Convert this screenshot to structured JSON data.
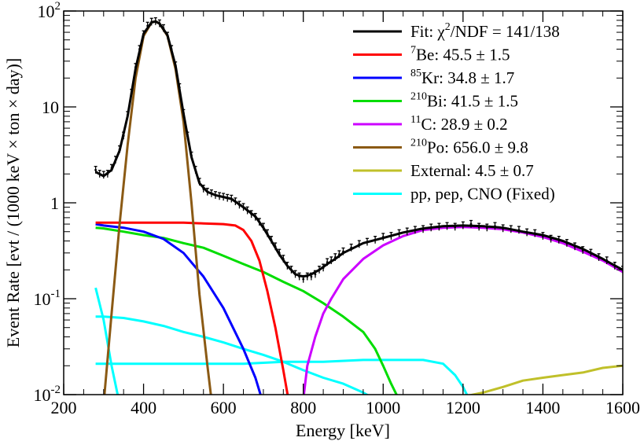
{
  "chart_data": {
    "type": "line",
    "title": "",
    "xlabel": "Energy [keV]",
    "ylabel": "Event Rate [evt / (1000 keV × ton × day)]",
    "xlim": [
      200,
      1600
    ],
    "ylim": [
      0.01,
      100
    ],
    "yscale": "log",
    "x_ticks": [
      {
        "value": 200,
        "label": "200"
      },
      {
        "value": 400,
        "label": "400"
      },
      {
        "value": 600,
        "label": "600"
      },
      {
        "value": 800,
        "label": "800"
      },
      {
        "value": 1000,
        "label": "1000"
      },
      {
        "value": 1200,
        "label": "1200"
      },
      {
        "value": 1400,
        "label": "1400"
      },
      {
        "value": 1600,
        "label": "1600"
      }
    ],
    "y_ticks": [
      {
        "value": 0.01,
        "base": "10",
        "exp": "-2"
      },
      {
        "value": 0.1,
        "base": "10",
        "exp": "-1"
      },
      {
        "value": 1,
        "base": "1",
        "exp": ""
      },
      {
        "value": 10,
        "base": "10",
        "exp": ""
      },
      {
        "value": 100,
        "base": "10",
        "exp": "2"
      }
    ],
    "legend_position": "top-right",
    "legend": [
      {
        "id": "fit",
        "sup": "",
        "text": "Fit: χ",
        "sup2": "2",
        "text2": "/NDF = 141/138",
        "color": "#000000"
      },
      {
        "id": "be7",
        "sup": "7",
        "text": "Be: 45.5 ± 1.5",
        "color": "#ff0000"
      },
      {
        "id": "kr85",
        "sup": "85",
        "text": "Kr: 34.8 ± 1.7",
        "color": "#0000ff"
      },
      {
        "id": "bi210",
        "sup": "210",
        "text": "Bi: 41.5 ± 1.5",
        "color": "#00dd00"
      },
      {
        "id": "c11",
        "sup": "11",
        "text": "C: 28.9 ± 0.2",
        "color": "#cc00ff"
      },
      {
        "id": "po210",
        "sup": "210",
        "text": "Po: 656.0 ± 9.8",
        "color": "#8b5a14"
      },
      {
        "id": "external",
        "sup": "",
        "text": "External: 4.5 ± 0.7",
        "color": "#c0c02a"
      },
      {
        "id": "ppcno",
        "sup": "",
        "text": "pp, pep, CNO (Fixed)",
        "color": "#00ffff"
      }
    ],
    "series": [
      {
        "id": "ppcno_a",
        "color": "#00ffff",
        "x": [
          280,
          300,
          320,
          340
        ],
        "y": [
          0.13,
          0.06,
          0.02,
          0.008
        ]
      },
      {
        "id": "ppcno_b",
        "color": "#00ffff",
        "x": [
          280,
          300,
          350,
          400,
          450,
          500,
          550,
          600,
          650,
          700,
          750,
          800,
          850,
          900,
          950,
          1000
        ],
        "y": [
          0.065,
          0.065,
          0.063,
          0.058,
          0.052,
          0.045,
          0.04,
          0.035,
          0.03,
          0.026,
          0.022,
          0.018,
          0.015,
          0.013,
          0.0105,
          0.008
        ]
      },
      {
        "id": "ppcno_c",
        "color": "#00ffff",
        "x": [
          280,
          350,
          450,
          550,
          650,
          750,
          850,
          950,
          1050,
          1100,
          1150,
          1180,
          1200,
          1215,
          1230
        ],
        "y": [
          0.021,
          0.021,
          0.021,
          0.021,
          0.021,
          0.022,
          0.022,
          0.023,
          0.023,
          0.023,
          0.021,
          0.016,
          0.012,
          0.009,
          0.006
        ]
      },
      {
        "id": "external",
        "color": "#c0c02a",
        "x": [
          1150,
          1200,
          1250,
          1300,
          1350,
          1400,
          1450,
          1500,
          1550,
          1600
        ],
        "y": [
          0.009,
          0.0095,
          0.0105,
          0.012,
          0.014,
          0.015,
          0.016,
          0.017,
          0.019,
          0.02
        ]
      },
      {
        "id": "bi210",
        "color": "#00dd00",
        "x": [
          280,
          300,
          350,
          400,
          450,
          500,
          550,
          600,
          650,
          700,
          750,
          800,
          850,
          900,
          950,
          980,
          1000,
          1020,
          1045
        ],
        "y": [
          0.55,
          0.54,
          0.5,
          0.46,
          0.43,
          0.38,
          0.34,
          0.28,
          0.23,
          0.19,
          0.15,
          0.12,
          0.09,
          0.065,
          0.045,
          0.03,
          0.02,
          0.013,
          0.008
        ]
      },
      {
        "id": "kr85",
        "color": "#0000ff",
        "x": [
          280,
          300,
          350,
          400,
          450,
          500,
          550,
          600,
          650,
          680,
          700
        ],
        "y": [
          0.6,
          0.58,
          0.55,
          0.5,
          0.42,
          0.3,
          0.17,
          0.08,
          0.03,
          0.015,
          0.008
        ]
      },
      {
        "id": "be7",
        "color": "#ff0000",
        "x": [
          280,
          300,
          350,
          400,
          450,
          500,
          550,
          600,
          630,
          650,
          670,
          690,
          710,
          730,
          750,
          770
        ],
        "y": [
          0.62,
          0.62,
          0.62,
          0.62,
          0.62,
          0.62,
          0.61,
          0.6,
          0.58,
          0.52,
          0.4,
          0.25,
          0.12,
          0.05,
          0.018,
          0.006
        ]
      },
      {
        "id": "c11",
        "color": "#cc00ff",
        "x": [
          795,
          810,
          830,
          850,
          870,
          900,
          950,
          1000,
          1050,
          1100,
          1150,
          1200,
          1250,
          1300,
          1350,
          1400,
          1450,
          1500,
          1550,
          1600
        ],
        "y": [
          0.006,
          0.02,
          0.04,
          0.07,
          0.1,
          0.16,
          0.26,
          0.36,
          0.45,
          0.52,
          0.55,
          0.56,
          0.55,
          0.53,
          0.49,
          0.44,
          0.38,
          0.31,
          0.25,
          0.19
        ]
      },
      {
        "id": "po210",
        "color": "#8b5a14",
        "x": [
          300,
          320,
          340,
          360,
          380,
          400,
          420,
          430,
          440,
          460,
          480,
          500,
          520,
          540,
          560,
          575
        ],
        "y": [
          0.008,
          0.07,
          0.6,
          4.0,
          20.0,
          55.0,
          76.0,
          78.0,
          74.0,
          55.0,
          25.0,
          7.0,
          1.0,
          0.11,
          0.02,
          0.006
        ]
      },
      {
        "id": "fit",
        "color": "#000000",
        "x": [
          280,
          300,
          320,
          340,
          360,
          380,
          400,
          420,
          430,
          440,
          460,
          480,
          500,
          520,
          540,
          560,
          580,
          600,
          620,
          650,
          680,
          700,
          720,
          740,
          760,
          780,
          800,
          820,
          840,
          860,
          880,
          900,
          950,
          1000,
          1050,
          1100,
          1150,
          1200,
          1250,
          1300,
          1350,
          1400,
          1450,
          1500,
          1550,
          1600
        ],
        "y": [
          2.1,
          1.9,
          2.2,
          3.5,
          8.0,
          25.0,
          58.0,
          76.0,
          78.0,
          74.0,
          56.0,
          27.0,
          8.5,
          3.0,
          1.6,
          1.3,
          1.2,
          1.15,
          1.1,
          0.9,
          0.72,
          0.55,
          0.4,
          0.29,
          0.22,
          0.18,
          0.17,
          0.18,
          0.2,
          0.23,
          0.26,
          0.3,
          0.38,
          0.43,
          0.49,
          0.54,
          0.57,
          0.58,
          0.57,
          0.55,
          0.5,
          0.46,
          0.4,
          0.33,
          0.26,
          0.2
        ]
      }
    ],
    "data_points": {
      "id": "data",
      "color": "#000000",
      "x": [
        280,
        290,
        300,
        310,
        320,
        330,
        340,
        350,
        360,
        370,
        380,
        390,
        400,
        410,
        420,
        430,
        440,
        450,
        460,
        470,
        480,
        490,
        500,
        510,
        520,
        530,
        540,
        550,
        560,
        570,
        580,
        590,
        600,
        610,
        620,
        630,
        640,
        650,
        660,
        670,
        680,
        690,
        700,
        710,
        720,
        730,
        740,
        750,
        760,
        770,
        780,
        790,
        800,
        810,
        820,
        830,
        840,
        850,
        860,
        870,
        880,
        890,
        900,
        920,
        940,
        960,
        980,
        1000,
        1020,
        1040,
        1060,
        1080,
        1100,
        1120,
        1140,
        1160,
        1180,
        1200,
        1220,
        1240,
        1260,
        1280,
        1300,
        1320,
        1340,
        1360,
        1380,
        1400,
        1420,
        1440,
        1460,
        1480,
        1500,
        1520,
        1540,
        1560,
        1580,
        1600
      ],
      "y": [
        2.2,
        2.0,
        1.95,
        2.0,
        2.3,
        2.8,
        3.6,
        5.0,
        8.2,
        14.0,
        26.0,
        40.0,
        57.0,
        70.0,
        77.0,
        78.0,
        74.0,
        66.0,
        55.0,
        40.0,
        27.0,
        16.0,
        8.6,
        5.0,
        3.1,
        2.2,
        1.65,
        1.4,
        1.3,
        1.25,
        1.2,
        1.17,
        1.15,
        1.12,
        1.1,
        1.03,
        0.95,
        0.9,
        0.83,
        0.76,
        0.71,
        0.63,
        0.56,
        0.48,
        0.41,
        0.35,
        0.3,
        0.26,
        0.22,
        0.2,
        0.18,
        0.17,
        0.16,
        0.17,
        0.17,
        0.18,
        0.2,
        0.21,
        0.24,
        0.25,
        0.27,
        0.29,
        0.31,
        0.34,
        0.37,
        0.39,
        0.41,
        0.44,
        0.45,
        0.48,
        0.5,
        0.52,
        0.53,
        0.55,
        0.56,
        0.57,
        0.56,
        0.58,
        0.6,
        0.56,
        0.55,
        0.57,
        0.54,
        0.53,
        0.52,
        0.49,
        0.48,
        0.45,
        0.42,
        0.41,
        0.38,
        0.35,
        0.32,
        0.3,
        0.27,
        0.25,
        0.22,
        0.2
      ]
    }
  }
}
